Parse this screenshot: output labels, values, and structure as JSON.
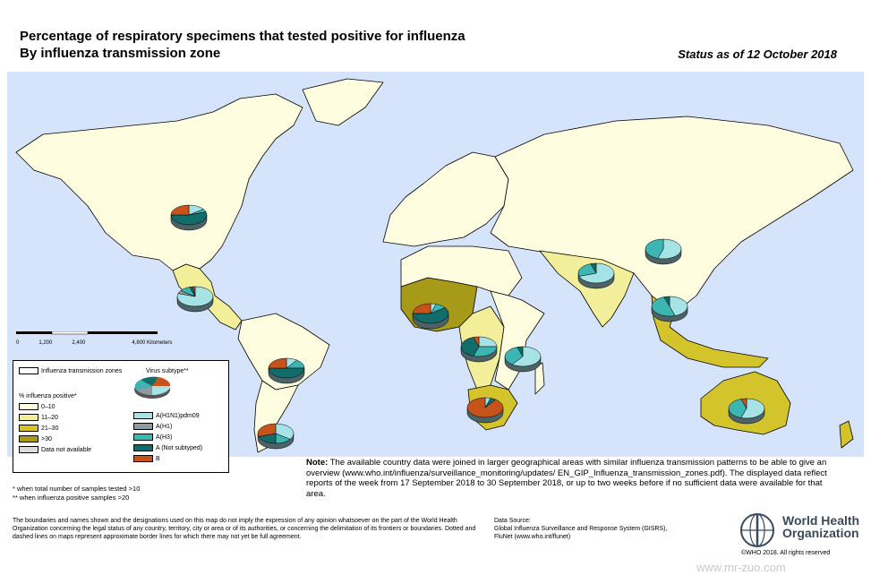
{
  "title": {
    "line1": "Percentage of respiratory specimens that tested positive for influenza",
    "line2": "By influenza transmission zone",
    "status": "Status as of 12 October 2018"
  },
  "scale_bar": {
    "labels": [
      "0",
      "1,200",
      "2,400",
      "4,800 Kilometers"
    ]
  },
  "legend": {
    "zones_label": "Influenza transmission zones",
    "subtype_label": "Virus subtype**",
    "positive_label": "% influenza positive*",
    "categories": [
      {
        "label": "0–10",
        "color": "#fffde0"
      },
      {
        "label": "11–20",
        "color": "#f2ee9a"
      },
      {
        "label": "21–30",
        "color": "#d4c42b"
      },
      {
        "label": ">30",
        "color": "#a69a18"
      },
      {
        "label": "Data not available",
        "color": "#dcdcdc"
      }
    ],
    "subtypes": [
      {
        "label": "A(H1N1)pdm09",
        "color": "#a5e3e6"
      },
      {
        "label": "A(H1)",
        "color": "#8e9aa3"
      },
      {
        "label": "A(H3)",
        "color": "#3cb5b3"
      },
      {
        "label": "A (Not subtyped)",
        "color": "#126c6a"
      },
      {
        "label": "B",
        "color": "#c6521c"
      }
    ]
  },
  "map_pies": [
    {
      "zone": "North America",
      "values": [
        0.15,
        0,
        0.05,
        0.55,
        0.25
      ]
    },
    {
      "zone": "Central America",
      "values": [
        0.8,
        0.05,
        0.1,
        0.03,
        0.02
      ]
    },
    {
      "zone": "Tropical South America",
      "values": [
        0.1,
        0,
        0.15,
        0.5,
        0.25
      ]
    },
    {
      "zone": "Temperate South America",
      "values": [
        0.35,
        0,
        0.15,
        0.2,
        0.3
      ]
    },
    {
      "zone": "Western Africa",
      "values": [
        0.05,
        0,
        0.1,
        0.6,
        0.25
      ]
    },
    {
      "zone": "Middle Africa",
      "values": [
        0.25,
        0,
        0.3,
        0.4,
        0.05
      ]
    },
    {
      "zone": "Eastern Africa",
      "values": [
        0.6,
        0,
        0.35,
        0.05,
        0
      ]
    },
    {
      "zone": "Southern Africa",
      "values": [
        0.05,
        0,
        0,
        0.05,
        0.9
      ]
    },
    {
      "zone": "Southern Asia",
      "values": [
        0.7,
        0,
        0.25,
        0.05,
        0
      ]
    },
    {
      "zone": "Eastern Asia",
      "values": [
        0.55,
        0,
        0.45,
        0,
        0
      ]
    },
    {
      "zone": "South-East Asia",
      "values": [
        0.45,
        0,
        0.5,
        0.05,
        0
      ]
    },
    {
      "zone": "Oceania",
      "values": [
        0.55,
        0,
        0.4,
        0,
        0.05
      ]
    }
  ],
  "note": {
    "label": "Note:",
    "text": "The available country data were joined in larger geographical areas with similar influenza transmission patterns to be able to give an overview (www.who.int/influenza/surveillance_monitoring/updates/ EN_GIP_Influenza_transmission_zones.pdf). The displayed data reflect reports of the week from 17 September 2018 to 30 September 2018, or up to two weeks before if no sufficient data were available for that area."
  },
  "footnotes": {
    "f1": "*  when total number of samples tested >10",
    "f2": "** when influenza positive samples >20"
  },
  "disclaimer": "The boundaries and names shown and the designations used on this map do not imply the expression of any opinion whatsoever on the part of the World Health Organization concerning the legal status of any country, territory, city or area or of its authorities, or concerning the delimitation of its frontiers or boundaries. Dotted and dashed lines on maps represent approximate border lines for which there may not yet be full agreement.",
  "data_source": {
    "label": "Data Source:",
    "line1": "Global Influenza Surveillance and Response System (GISRS),",
    "line2": "FluNet (www.who.int/flunet)"
  },
  "who": {
    "line1": "World Health",
    "line2": "Organization",
    "copyright": "©WHO 2018. All rights reserved"
  },
  "watermark": "www.mr-zuo.com"
}
